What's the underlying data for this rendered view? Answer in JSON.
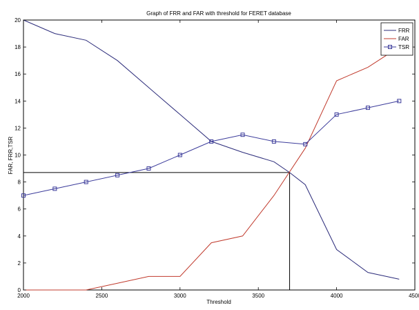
{
  "chart_data": {
    "type": "line",
    "title": "Graph of FRR and FAR with threshold for FERET database",
    "xlabel": "Threshold",
    "ylabel": "FAR, FRR,TSR",
    "xlim": [
      2000,
      4500
    ],
    "ylim": [
      0,
      20
    ],
    "xticks": [
      2000,
      2500,
      3000,
      3500,
      4000,
      4500
    ],
    "yticks": [
      0,
      2,
      4,
      6,
      8,
      10,
      12,
      14,
      16,
      18,
      20
    ],
    "xtick_labels": [
      "2000",
      "2500",
      "3000",
      "3500",
      "4000",
      "4500"
    ],
    "ytick_labels": [
      "0",
      "2",
      "4",
      "6",
      "8",
      "10",
      "12",
      "14",
      "16",
      "18",
      "20"
    ],
    "grid": false,
    "legend_position": "top-right",
    "series": [
      {
        "name": "FRR",
        "color": "#2b2b7a",
        "marker": "none",
        "x": [
          2000,
          2200,
          2400,
          2600,
          2800,
          3000,
          3200,
          3400,
          3600,
          3700,
          3800,
          4000,
          4200,
          4400
        ],
        "y": [
          20,
          19,
          18.5,
          17,
          15,
          13,
          11,
          10.2,
          9.5,
          8.7,
          7.8,
          3,
          1.3,
          0.8
        ]
      },
      {
        "name": "FAR",
        "color": "#c0392b",
        "marker": "none",
        "x": [
          2000,
          2200,
          2400,
          2600,
          2800,
          3000,
          3200,
          3400,
          3600,
          3800,
          4000,
          4200,
          4400
        ],
        "y": [
          0,
          0,
          0,
          0.5,
          1,
          1,
          3.5,
          4,
          7,
          10.5,
          15.5,
          16.5,
          18
        ]
      },
      {
        "name": "TSR",
        "color": "#3a3a9a",
        "marker": "square",
        "x": [
          2000,
          2200,
          2400,
          2600,
          2800,
          3000,
          3200,
          3400,
          3600,
          3800,
          4000,
          4200,
          4400
        ],
        "y": [
          7,
          7.5,
          8,
          8.5,
          9,
          10,
          11,
          11.5,
          11,
          10.8,
          13,
          13.5,
          14
        ]
      }
    ],
    "reference_lines": {
      "x": 3700,
      "y": 8.7,
      "color": "#000000"
    }
  }
}
